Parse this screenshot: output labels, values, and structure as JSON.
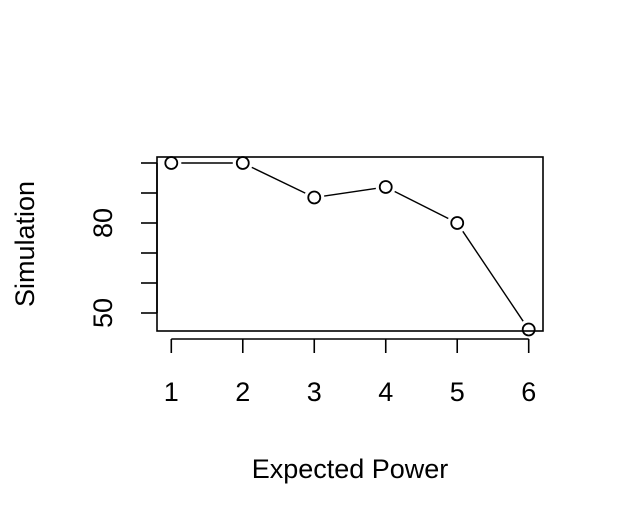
{
  "chart_data": {
    "type": "line",
    "x": [
      1,
      2,
      3,
      4,
      5,
      6
    ],
    "values": [
      100,
      100,
      88.5,
      92,
      80,
      44.5
    ],
    "xlabel": "Expected Power",
    "ylabel": "Simulation",
    "x_tick_labels": [
      "1",
      "2",
      "3",
      "4",
      "5",
      "6"
    ],
    "y_ticks": [
      50,
      60,
      70,
      80,
      90,
      100
    ],
    "y_tick_labels": [
      "50",
      "",
      "",
      "80",
      "",
      ""
    ],
    "xlim": [
      0.8,
      6.2
    ],
    "ylim": [
      44,
      102
    ],
    "grid": false,
    "marker": "open-circle"
  }
}
